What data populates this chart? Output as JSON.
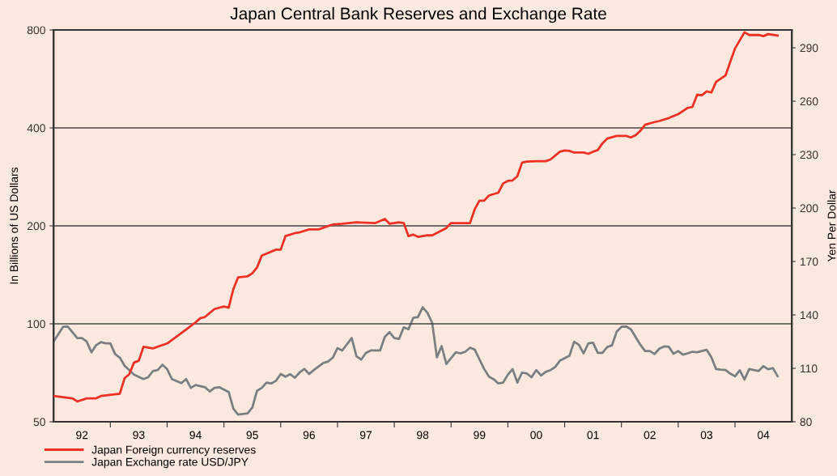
{
  "chart_data": {
    "type": "line",
    "title": "Japan Central Bank Reserves and Exchange Rate",
    "ylabel": "In Billions of US Dollars",
    "y2label": "Yen Per Dollar",
    "log": "y",
    "grid": "y",
    "legend": "bottom left",
    "xlim": [
      "1992-01",
      "2005-01"
    ],
    "ylim": [
      50,
      800
    ],
    "yticks": [
      50,
      100,
      200,
      400,
      800
    ],
    "y2lim": [
      80,
      300
    ],
    "y2ticks": [
      80,
      110,
      140,
      170,
      200,
      230,
      260,
      290
    ],
    "xticks": [
      {
        "value": "1992-07",
        "label": "92"
      },
      {
        "value": "1993",
        "label": null
      },
      {
        "value": "1993-07",
        "label": "93"
      },
      {
        "value": "1994",
        "label": null
      },
      {
        "value": "1994-07",
        "label": "94"
      },
      {
        "value": "1995",
        "label": null
      },
      {
        "value": "1995-07",
        "label": "95"
      },
      {
        "value": "1996",
        "label": null
      },
      {
        "value": "1996-07",
        "label": "96"
      },
      {
        "value": "1997",
        "label": null
      },
      {
        "value": "1997-07",
        "label": "97"
      },
      {
        "value": "1998",
        "label": null
      },
      {
        "value": "1998-07",
        "label": "98"
      },
      {
        "value": "1999",
        "label": null
      },
      {
        "value": "1999-07",
        "label": "99"
      },
      {
        "value": "2000",
        "label": null
      },
      {
        "value": "2000-07",
        "label": "00"
      },
      {
        "value": "2001",
        "label": null
      },
      {
        "value": "2001-07",
        "label": "01"
      },
      {
        "value": "2002",
        "label": null
      },
      {
        "value": "2002-07",
        "label": "02"
      },
      {
        "value": "2003",
        "label": null
      },
      {
        "value": "2003-07",
        "label": "03"
      },
      {
        "value": "2004",
        "label": null
      },
      {
        "value": "2004-07",
        "label": "04"
      }
    ],
    "series": [
      {
        "name": "Japan Foreign currency reserves",
        "color": "#ee3124",
        "x": [
          "1992-01",
          "1992-05",
          "1992-06",
          "1992-08",
          "1992-10",
          "1992-11",
          "1993-03",
          "1993-04",
          "1993-05",
          "1993-06",
          "1993-07",
          "1993-08",
          "1993-10",
          "1993-12",
          "1994-01",
          "1994-05",
          "1994-07",
          "1994-08",
          "1994-09",
          "1994-11",
          "1995-01",
          "1995-02",
          "1995-03",
          "1995-04",
          "1995-06",
          "1995-07",
          "1995-08",
          "1995-09",
          "1995-12",
          "1996-01",
          "1996-02",
          "1996-04",
          "1996-05",
          "1996-07",
          "1996-09",
          "1996-12",
          "1997-02",
          "1997-05",
          "1997-09",
          "1997-11",
          "1997-12",
          "1998-02",
          "1998-03",
          "1998-04",
          "1998-05",
          "1998-06",
          "1998-08",
          "1998-09",
          "1998-12",
          "1999-01",
          "1999-02",
          "1999-05",
          "1999-06",
          "1999-07",
          "1999-08",
          "1999-09",
          "1999-11",
          "1999-12",
          "2000-01",
          "2000-02",
          "2000-03",
          "2000-04",
          "2000-05",
          "2000-07",
          "2000-09",
          "2000-10",
          "2000-12",
          "2001-01",
          "2001-02",
          "2001-03",
          "2001-05",
          "2001-06",
          "2001-07",
          "2001-08",
          "2001-09",
          "2001-10",
          "2001-12",
          "2002-02",
          "2002-03",
          "2002-04",
          "2002-05",
          "2002-06",
          "2002-08",
          "2002-09",
          "2002-11",
          "2003-01",
          "2003-02",
          "2003-03",
          "2003-04",
          "2003-05",
          "2003-06",
          "2003-07",
          "2003-08",
          "2003-09",
          "2003-11",
          "2003-12",
          "2004-01",
          "2004-03",
          "2004-04",
          "2004-06",
          "2004-07",
          "2004-08",
          "2004-10"
        ],
        "values": [
          60,
          59,
          57.7,
          59,
          59,
          60,
          61,
          68,
          70,
          76,
          77,
          85,
          84,
          86,
          87,
          96,
          101,
          104,
          105,
          111,
          113,
          112,
          128,
          139,
          140,
          143,
          149,
          162,
          169,
          169,
          186,
          190,
          191,
          195,
          195,
          202,
          203,
          205,
          204,
          210,
          203,
          205,
          204,
          186,
          188,
          185,
          187,
          187,
          197,
          204,
          204,
          204,
          225,
          239,
          239,
          248,
          253,
          270,
          275,
          276,
          284,
          313,
          315,
          316,
          316,
          320,
          338,
          341,
          340,
          336,
          336,
          333,
          338,
          342,
          359,
          371,
          378,
          378,
          374,
          380,
          392,
          409,
          417,
          420,
          429,
          441,
          451,
          461,
          464,
          506,
          504,
          518,
          514,
          554,
          580,
          639,
          702,
          787,
          772,
          773,
          766,
          777,
          769
        ]
      },
      {
        "name": "Japan Exchange rate USD/JPY",
        "color": "#7a8081",
        "axis": "y2",
        "x": [
          "1992-01",
          "1992-03",
          "1992-04",
          "1992-06",
          "1992-07",
          "1992-08",
          "1992-09",
          "1992-10",
          "1992-11",
          "1992-12",
          "1993-01",
          "1993-02",
          "1993-03",
          "1993-04",
          "1993-06",
          "1993-08",
          "1993-09",
          "1993-10",
          "1993-11",
          "1993-12",
          "1994-01",
          "1994-02",
          "1994-04",
          "1994-05",
          "1994-06",
          "1994-07",
          "1994-09",
          "1994-10",
          "1994-11",
          "1994-12",
          "1995-02",
          "1995-03",
          "1995-04",
          "1995-06",
          "1995-07",
          "1995-08",
          "1995-09",
          "1995-10",
          "1995-11",
          "1995-12",
          "1996-01",
          "1996-02",
          "1996-03",
          "1996-04",
          "1996-05",
          "1996-06",
          "1996-07",
          "1996-08",
          "1996-10",
          "1996-11",
          "1996-12",
          "1997-01",
          "1997-02",
          "1997-04",
          "1997-05",
          "1997-06",
          "1997-07",
          "1997-08",
          "1997-10",
          "1997-11",
          "1997-12",
          "1998-01",
          "1998-02",
          "1998-03",
          "1998-04",
          "1998-05",
          "1998-06",
          "1998-07",
          "1998-08",
          "1998-09",
          "1998-10",
          "1998-11",
          "1998-12",
          "1999-02",
          "1999-03",
          "1999-04",
          "1999-05",
          "1999-06",
          "1999-08",
          "1999-09",
          "1999-10",
          "1999-11",
          "1999-12",
          "2000-01",
          "2000-02",
          "2000-03",
          "2000-04",
          "2000-05",
          "2000-06",
          "2000-07",
          "2000-08",
          "2000-09",
          "2000-10",
          "2000-11",
          "2000-12",
          "2001-02",
          "2001-03",
          "2001-04",
          "2001-05",
          "2001-06",
          "2001-07",
          "2001-08",
          "2001-09",
          "2001-10",
          "2001-11",
          "2001-12",
          "2002-01",
          "2002-02",
          "2002-03",
          "2002-05",
          "2002-06",
          "2002-07",
          "2002-08",
          "2002-09",
          "2002-10",
          "2002-11",
          "2002-12",
          "2003-01",
          "2003-02",
          "2003-03",
          "2003-04",
          "2003-05",
          "2003-07",
          "2003-08",
          "2003-09",
          "2003-10",
          "2003-11",
          "2003-12",
          "2004-01",
          "2004-02",
          "2004-03",
          "2004-04",
          "2004-06",
          "2004-07",
          "2004-08",
          "2004-09",
          "2004-10"
        ],
        "values": [
          125,
          133.3,
          133.5,
          127,
          127,
          125,
          119,
          123,
          124.7,
          124,
          124,
          118,
          116,
          111.5,
          106.5,
          104,
          105,
          108.5,
          109,
          112,
          109.5,
          104,
          101.7,
          104,
          99,
          100.6,
          99.4,
          97,
          99,
          99.4,
          96.7,
          87.3,
          84,
          84.7,
          88,
          97.4,
          99,
          102,
          101.5,
          103,
          106.8,
          105.3,
          106.7,
          104.7,
          107.7,
          109.7,
          106.8,
          109,
          113,
          113.8,
          116,
          121.4,
          120,
          127,
          116.8,
          114.9,
          118.6,
          120,
          120,
          127.7,
          130.3,
          127,
          126.5,
          133,
          132,
          138.3,
          138.8,
          144.3,
          141.2,
          135.6,
          116.2,
          122.5,
          112.4,
          119,
          118.4,
          119.3,
          121.6,
          120.5,
          109.6,
          105.3,
          103.9,
          101.5,
          102,
          106.4,
          109.6,
          102,
          107.6,
          107.1,
          105,
          109,
          106,
          108,
          109,
          110.7,
          114.3,
          117,
          124.9,
          123.2,
          118.4,
          124,
          124.4,
          118.7,
          118.7,
          122,
          122.9,
          130.6,
          133.3,
          133.5,
          131.9,
          123.2,
          119.7,
          119.7,
          118,
          121,
          122.3,
          122.1,
          118.2,
          119.7,
          117.7,
          118.4,
          119.3,
          119,
          120.4,
          116.2,
          109.6,
          109.2,
          109,
          107,
          105.5,
          108.9,
          103.7,
          109.6,
          108.5,
          111.2,
          109.5,
          110.1,
          105.6
        ]
      }
    ]
  }
}
